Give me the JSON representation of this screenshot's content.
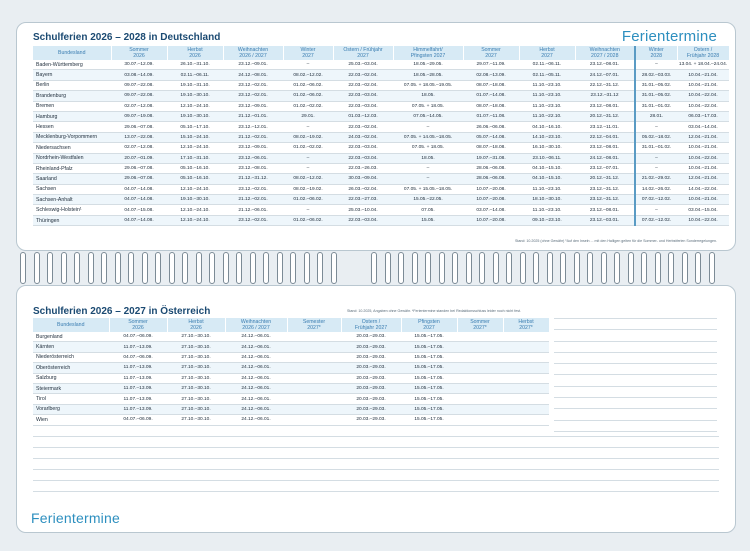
{
  "brand": "Ferientermine",
  "germany": {
    "title": "Schulferien 2026 – 2028 in Deutschland",
    "headers": [
      "Bundesland",
      "Sommer\n2026",
      "Herbst\n2026",
      "Weihnachten\n2026 / 2027",
      "Winter\n2027",
      "Ostern / Frühjahr\n2027",
      "Himmelfahrt/\nPfingsten 2027",
      "Sommer\n2027",
      "Herbst\n2027",
      "Weihnachten\n2027 / 2028",
      "Winter\n2028",
      "Ostern /\nFrühjahr 2028"
    ],
    "rows": [
      [
        "Baden-Württemberg",
        "30.07.–12.09.",
        "26.10.–31.10.",
        "23.12.–09.01.",
        "–",
        "25.03.–03.04.",
        "18.05.–29.05.",
        "29.07.–11.09.",
        "02.11.–06.11.",
        "23.12.–08.01.",
        "–",
        "13.04. + 18.04.–24.04."
      ],
      [
        "Bayern",
        "03.08.–14.09.",
        "02.11.–06.11.",
        "24.12.–08.01.",
        "08.02.–12.02.",
        "22.03.–02.04.",
        "18.05.–28.05.",
        "02.08.–13.09.",
        "02.11.–05.11.",
        "24.12.–07.01.",
        "28.02.–03.03.",
        "10.04.–21.04."
      ],
      [
        "Berlin",
        "09.07.–22.08.",
        "19.10.–31.10.",
        "23.12.–02.01.",
        "01.02.–06.02.",
        "22.03.–02.04.",
        "07.05. + 18.05.–19.05.",
        "08.07.–18.08.",
        "11.10.–23.10.",
        "22.12.–31.12.",
        "31.01.–05.02.",
        "10.04.–21.04."
      ],
      [
        "Brandenburg",
        "09.07.–22.08.",
        "19.10.–30.10.",
        "23.12.–02.01.",
        "01.02.–06.02.",
        "22.03.–03.04.",
        "18.05.",
        "01.07.–14.08.",
        "11.10.–23.10.",
        "23.12.–31.12",
        "31.01.–05.02.",
        "10.04.–22.04."
      ],
      [
        "Bremen",
        "02.07.–12.08.",
        "12.10.–24.10.",
        "23.12.–09.01.",
        "01.02.–02.02.",
        "22.03.–03.04.",
        "07.05. + 18.05.",
        "08.07.–18.08.",
        "11.10.–23.10.",
        "23.12.–08.01.",
        "31.01.–01.02.",
        "10.04.–22.04."
      ],
      [
        "Hamburg",
        "09.07.–19.08.",
        "19.10.–30.10.",
        "21.12.–01.01.",
        "29.01.",
        "01.03.–12.03.",
        "07.05.–14.05.",
        "01.07.–11.08.",
        "11.10.–22.10.",
        "20.12.–31.12.",
        "28.01.",
        "06.03.–17.03."
      ],
      [
        "Hessen",
        "29.06.–07.08.",
        "05.10.–17.10.",
        "23.12.–12.01.",
        "–",
        "22.03.–02.04.",
        "–",
        "26.06.–06.08.",
        "04.10.–16.10.",
        "23.12.–11.01.",
        "–",
        "03.04.–14.04."
      ],
      [
        "Mecklenburg-Vorpommern",
        "13.07.–22.08.",
        "15.10.–24.10.",
        "21.12.–02.01.",
        "08.02.–19.02.",
        "24.03.–02.04.",
        "07.05. + 14.05.–18.05.",
        "05.07.–14.08.",
        "14.10.–23.10.",
        "22.12.–04.01.",
        "05.02.–18.02.",
        "12.04.–21.04."
      ],
      [
        "Niedersachsen",
        "02.07.–12.08.",
        "12.10.–24.10.",
        "23.12.–09.01.",
        "01.02.–02.02.",
        "22.03.–03.04.",
        "07.05. + 18.05.",
        "08.07.–18.08.",
        "16.10.–30.10.",
        "23.12.–08.01.",
        "31.01.–01.02.",
        "10.04.–21.04."
      ],
      [
        "Nordrhein-Westfalen",
        "20.07.–01.09.",
        "17.10.–31.10.",
        "23.12.–06.01.",
        "–",
        "22.03.–03.04.",
        "18.05.",
        "19.07.–31.08.",
        "23.10.–06.11.",
        "24.12.–08.01.",
        "–",
        "10.04.–22.04."
      ],
      [
        "Rheinland-Pfalz",
        "29.06.–07.08.",
        "05.10.–16.10.",
        "23.12.–08.01.",
        "–",
        "22.03.–26.03.",
        "–",
        "28.06.–06.08.",
        "04.10.–15.10.",
        "23.12.–07.01.",
        "–",
        "10.04.–21.04."
      ],
      [
        "Saarland",
        "29.06.–07.08.",
        "05.10.–16.10.",
        "21.12.–31.12.",
        "08.02.–12.02.",
        "30.03.–09.04.",
        "–",
        "28.06.–06.08.",
        "04.10.–15.10.",
        "20.12.–31.12.",
        "21.02.–29.02.",
        "12.04.–21.04."
      ],
      [
        "Sachsen",
        "04.07.–14.08.",
        "12.10.–24.10.",
        "23.12.–02.01.",
        "08.02.–19.02.",
        "26.03.–02.04.",
        "07.05. + 15.05.–18.05.",
        "10.07.–20.08.",
        "11.10.–23.10.",
        "23.12.–31.12.",
        "14.02.–26.02.",
        "14.04.–22.04."
      ],
      [
        "Sachsen-Anhalt",
        "04.07.–14.08.",
        "19.10.–30.10.",
        "21.12.–02.01.",
        "01.02.–06.02.",
        "22.03.–27.03.",
        "15.05.–22.05.",
        "10.07.–20.08.",
        "18.10.–30.10.",
        "23.12.–31.12.",
        "07.02.–12.02.",
        "10.04.–21.04."
      ],
      [
        "Schleswig-Holstein¹",
        "04.07.–15.08.",
        "12.10.–24.10.",
        "21.12.–06.01.",
        "–",
        "25.03.–10.04.",
        "07.05.",
        "03.07.–14.08.",
        "11.10.–23.10.",
        "23.12.–08.01.",
        "–",
        "03.04.–15.04."
      ],
      [
        "Thüringen",
        "04.07.–14.08.",
        "12.10.–24.10.",
        "23.12.–02.01.",
        "01.02.–06.02.",
        "22.03.–03.04.",
        "15.05.",
        "10.07.–20.08.",
        "09.10.–23.10.",
        "23.12.–03.01.",
        "07.02.–12.02.",
        "10.04.–22.04."
      ]
    ],
    "footnote": "Stand: 10.2025 (ohne Gewähr) ¹Auf den Inseln ... mit den Halligen gelten für die Sommer- und Herbstferien Sonderregelungen."
  },
  "austria": {
    "title": "Schulferien 2026 – 2027 in Österreich",
    "headers": [
      "Bundesland",
      "Sommer\n2026",
      "Herbst\n2026",
      "Weihnachten\n2026 / 2027",
      "Semester\n2027*",
      "Ostern /\nFrühjahr 2027",
      "Pfingsten\n2027",
      "Sommer\n2027*",
      "Herbst\n2027*"
    ],
    "rows": [
      [
        "Burgenland",
        "04.07.–06.09.",
        "27.10.–30.10.",
        "24.12.–06.01.",
        "",
        "20.03.–29.03.",
        "15.05.–17.05.",
        "",
        ""
      ],
      [
        "Kärnten",
        "11.07.–13.09.",
        "27.10.–30.10.",
        "24.12.–06.01.",
        "",
        "20.03.–29.03.",
        "15.05.–17.05.",
        "",
        ""
      ],
      [
        "Niederösterreich",
        "04.07.–06.09.",
        "27.10.–30.10.",
        "24.12.–06.01.",
        "",
        "20.03.–29.03.",
        "15.05.–17.05.",
        "",
        ""
      ],
      [
        "Oberösterreich",
        "11.07.–13.09.",
        "27.10.–30.10.",
        "24.12.–06.01.",
        "",
        "20.03.–29.03.",
        "15.05.–17.05.",
        "",
        ""
      ],
      [
        "Salzburg",
        "11.07.–13.09.",
        "27.10.–30.10.",
        "24.12.–06.01.",
        "",
        "20.03.–29.03.",
        "15.05.–17.05.",
        "",
        ""
      ],
      [
        "Steiermark",
        "11.07.–13.09.",
        "27.10.–30.10.",
        "24.12.–06.01.",
        "",
        "20.03.–29.03.",
        "15.05.–17.05.",
        "",
        ""
      ],
      [
        "Tirol",
        "11.07.–13.09.",
        "27.10.–30.10.",
        "24.12.–06.01.",
        "",
        "20.03.–29.03.",
        "15.05.–17.05.",
        "",
        ""
      ],
      [
        "Vorarlberg",
        "11.07.–13.09.",
        "27.10.–30.10.",
        "24.12.–06.01.",
        "",
        "20.03.–29.03.",
        "15.05.–17.05.",
        "",
        ""
      ],
      [
        "Wien",
        "04.07.–06.09.",
        "27.10.–30.10.",
        "24.12.–06.01.",
        "",
        "20.03.–29.03.",
        "15.05.–17.05.",
        "",
        ""
      ]
    ],
    "footnote": "Stand: 10.2025, Angaben ohne Gewähr. *Ferientermine standen bei Redaktionsschluss leider noch nicht fest."
  }
}
